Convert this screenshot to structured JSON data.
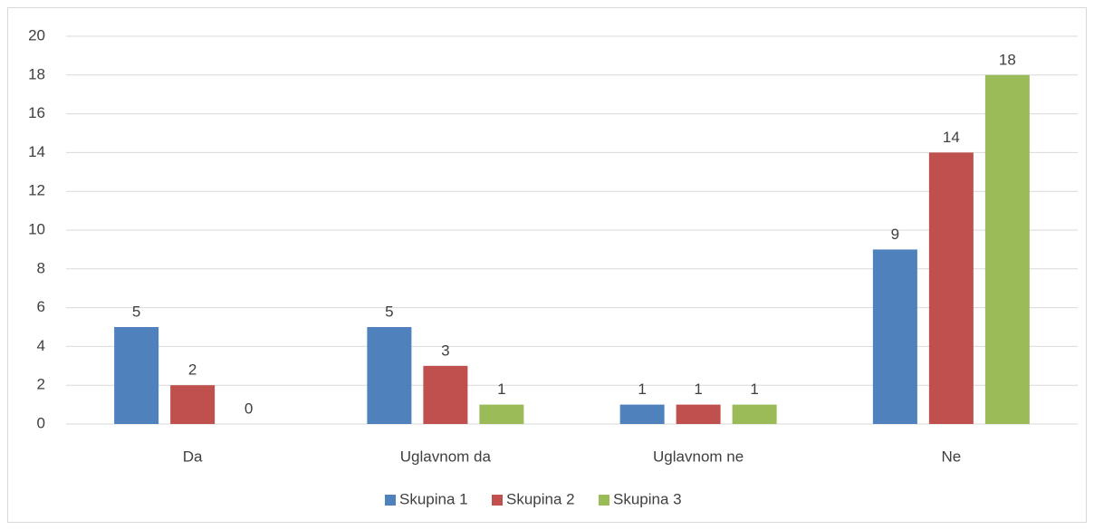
{
  "chart_data": {
    "type": "bar",
    "categories": [
      "Da",
      "Uglavnom da",
      "Uglavnom ne",
      "Ne"
    ],
    "series": [
      {
        "name": "Skupina 1",
        "color": "#4f81bd",
        "values": [
          5,
          5,
          1,
          9
        ]
      },
      {
        "name": "Skupina 2",
        "color": "#c0504d",
        "values": [
          2,
          3,
          1,
          14
        ]
      },
      {
        "name": "Skupina 3",
        "color": "#9bbb59",
        "values": [
          0,
          1,
          1,
          18
        ]
      }
    ],
    "ylim": [
      0,
      20
    ],
    "yticks": [
      0,
      2,
      4,
      6,
      8,
      10,
      12,
      14,
      16,
      18,
      20
    ],
    "grid": true,
    "data_labels": true,
    "legend": "bottom"
  }
}
